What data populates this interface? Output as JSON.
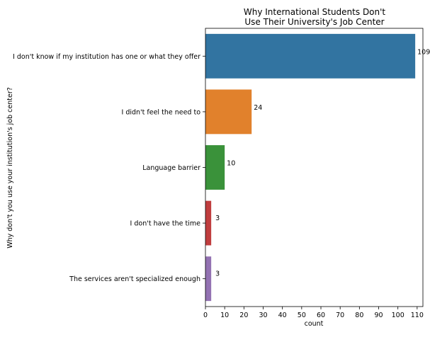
{
  "chart_data": {
    "type": "bar",
    "orientation": "horizontal",
    "title": [
      "Why International Students Don't",
      "Use Their University's Job Center"
    ],
    "xlabel": "count",
    "ylabel": "Why don't you use your institution's job center?",
    "categories": [
      "I don't know if my institution has one or what they offer",
      "I didn't feel the need to",
      "Language barrier",
      "I don't have the time",
      "The services aren't specialized enough"
    ],
    "values": [
      109,
      24,
      10,
      3,
      3
    ],
    "data_labels": [
      "109",
      "24",
      "10",
      "3",
      "3"
    ],
    "colors": [
      "#3274a1",
      "#e1812c",
      "#3a923a",
      "#c03d3e",
      "#9372b2"
    ],
    "xlim": [
      0,
      113
    ],
    "xticks": [
      0,
      10,
      20,
      30,
      40,
      50,
      60,
      70,
      80,
      90,
      100,
      110
    ],
    "grid": false,
    "legend": "none"
  }
}
